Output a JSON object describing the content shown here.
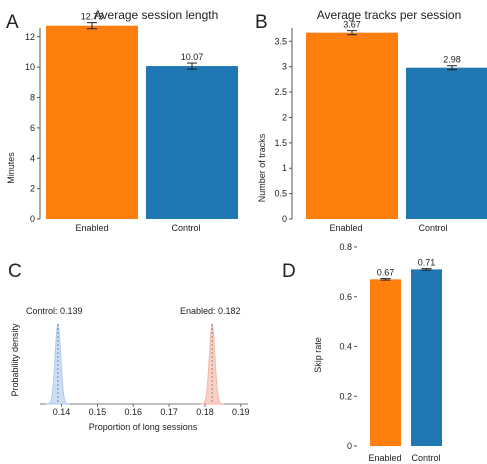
{
  "colors": {
    "enabled": "#ff7f0e",
    "control": "#1f77b4",
    "control_density": "#aecbf0",
    "enabled_density": "#f7b7a6",
    "axis": "#555555",
    "text": "#222222"
  },
  "chart_data": [
    {
      "id": "A",
      "panel_letter": "A",
      "type": "bar",
      "title": "Average session length",
      "xlabel": "",
      "ylabel": "Minutes",
      "categories": [
        "Enabled",
        "Control"
      ],
      "values": [
        12.73,
        10.07
      ],
      "value_labels": [
        "12.73",
        "10.07"
      ],
      "errors": [
        0.2,
        0.2
      ],
      "bar_colors": [
        "#ff7f0e",
        "#1f77b4"
      ],
      "ylim": [
        0,
        13.5
      ],
      "yticks": [
        0,
        2,
        4,
        6,
        8,
        10,
        12
      ],
      "ytick_labels": [
        "0",
        "2",
        "4",
        "6",
        "8",
        "10",
        "12"
      ],
      "grid": false
    },
    {
      "id": "B",
      "panel_letter": "B",
      "type": "bar",
      "title": "Average tracks per session",
      "xlabel": "",
      "ylabel": "Number of tracks",
      "categories": [
        "Enabled",
        "Control"
      ],
      "values": [
        3.67,
        2.98
      ],
      "value_labels": [
        "3.67",
        "2.98"
      ],
      "errors": [
        0.04,
        0.04
      ],
      "bar_colors": [
        "#ff7f0e",
        "#1f77b4"
      ],
      "ylim": [
        0,
        3.9
      ],
      "yticks": [
        0,
        0.5,
        1,
        1.5,
        2,
        2.5,
        3,
        3.5
      ],
      "ytick_labels": [
        "0",
        "0.5",
        "1",
        "1.5",
        "2",
        "2.5",
        "3",
        "3.5"
      ],
      "grid": false
    },
    {
      "id": "C",
      "panel_letter": "C",
      "type": "area",
      "title": "",
      "xlabel": "Proportion of long sessions",
      "ylabel": "Probability density",
      "xlim": [
        0.134,
        0.192
      ],
      "xticks": [
        0.14,
        0.15,
        0.16,
        0.17,
        0.18,
        0.19
      ],
      "xtick_labels": [
        "0.14",
        "0.15",
        "0.16",
        "0.17",
        "0.18",
        "0.19"
      ],
      "series": [
        {
          "mean": 0.139,
          "sd": 0.00078,
          "color": "#aecbf0"
        },
        {
          "mean": 0.182,
          "sd": 0.00078,
          "color": "#f7b7a6"
        }
      ],
      "annotations": [
        "Control: 0.139",
        "Enabled: 0.182"
      ],
      "grid": false
    },
    {
      "id": "D",
      "panel_letter": "D",
      "type": "bar",
      "title": "",
      "xlabel": "",
      "ylabel": "Skip rate",
      "categories": [
        "Enabled",
        "Control"
      ],
      "values": [
        0.67,
        0.71
      ],
      "value_labels": [
        "0.67",
        "0.71"
      ],
      "errors": [
        0.003,
        0.003
      ],
      "bar_colors": [
        "#ff7f0e",
        "#1f77b4"
      ],
      "ylim": [
        0,
        0.8
      ],
      "yticks": [
        0,
        0.2,
        0.4,
        0.6,
        0.8
      ],
      "ytick_labels": [
        "0",
        "0.2",
        "0.4",
        "0.6",
        "0.8"
      ],
      "grid": false
    }
  ]
}
